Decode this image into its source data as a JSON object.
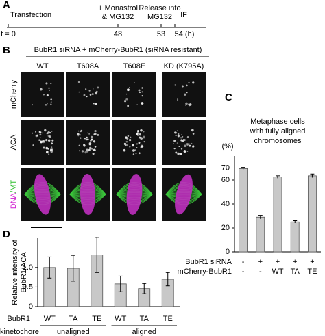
{
  "panel_a": {
    "label": "A",
    "events": [
      {
        "text": [
          "Transfection"
        ],
        "time": "t = 0"
      },
      {
        "text": [
          "+ Monastrol",
          "& MG132"
        ],
        "time": "48"
      },
      {
        "text": [
          "Release into",
          "MG132"
        ],
        "time": "53"
      },
      {
        "text": [
          "IF"
        ],
        "time": "54 (h)"
      }
    ]
  },
  "panel_b": {
    "label": "B",
    "header": "BubR1 siRNA + mCherry-BubR1 (siRNA resistant)",
    "columns": [
      "WT",
      "T608A",
      "T608E",
      "KD (K795A)"
    ],
    "rows": [
      [
        "mCherry"
      ],
      [
        "ACA"
      ],
      [
        "DNA",
        "/MT"
      ]
    ]
  },
  "chart_data": [
    {
      "type": "bar",
      "panel": "C",
      "title": [
        "Metaphase cells",
        "with fully aligned",
        "chromosomes"
      ],
      "y_label": "(%)",
      "values": [
        69.5,
        29,
        62.5,
        25,
        63.5
      ],
      "errors": [
        1,
        1.5,
        1,
        1,
        1.5
      ],
      "color": "#c8c8c8",
      "ylim": [
        0,
        80
      ],
      "yticks": [
        0,
        20,
        40,
        60,
        70
      ],
      "conditions": [
        {
          "row_label": "BubR1 siRNA",
          "cells": [
            "-",
            "+",
            "+",
            "+",
            "+"
          ]
        },
        {
          "row_label": "mCherry-BubR1",
          "cells": [
            "-",
            "-",
            "WT",
            "TA",
            "TE"
          ]
        }
      ]
    },
    {
      "type": "bar",
      "panel": "D",
      "y_label": [
        "Relative intensity of",
        "BubR1/ACA"
      ],
      "category_label": "BubR1",
      "categories": [
        "WT",
        "TA",
        "TE",
        "WT",
        "TA",
        "TE"
      ],
      "group_label": "kinetochore",
      "groups": [
        "unaligned",
        "aligned"
      ],
      "values": [
        1.0,
        0.98,
        1.32,
        0.58,
        0.46,
        0.7
      ],
      "errors": [
        0.27,
        0.33,
        0.45,
        0.2,
        0.13,
        0.17
      ],
      "color": "#c8c8c8",
      "ylim": [
        0,
        1.75
      ],
      "yticks": [
        0,
        0.5,
        {
          "value": 1,
          "label": "1.0"
        }
      ]
    }
  ]
}
